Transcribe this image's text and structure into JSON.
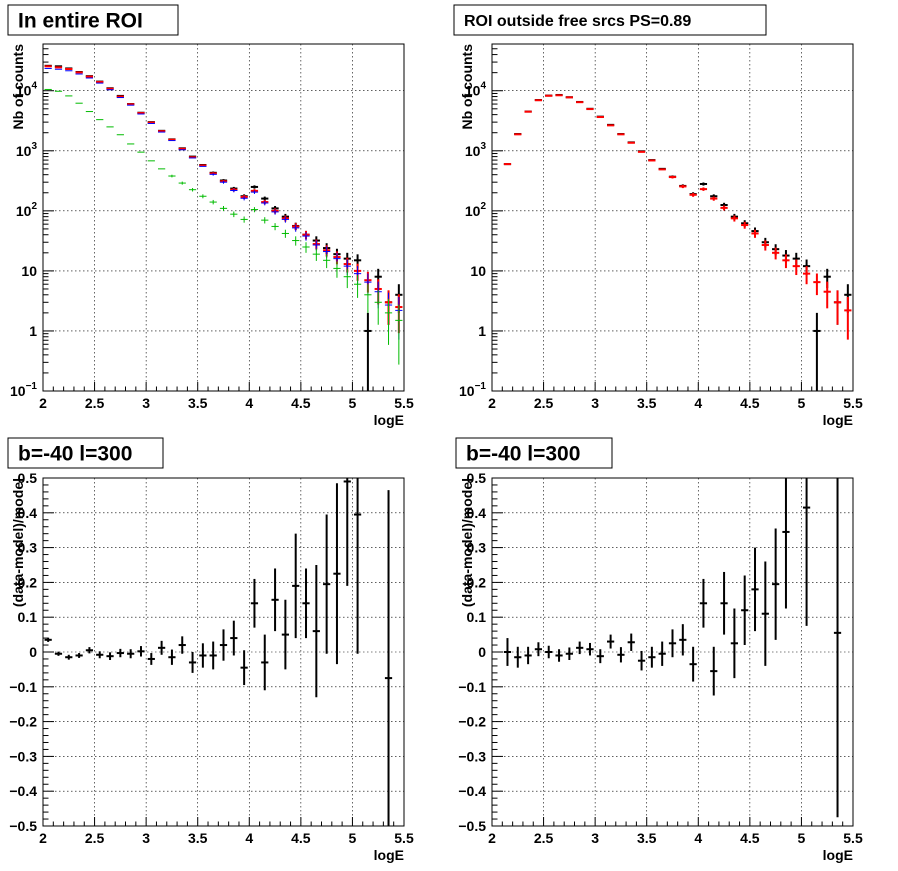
{
  "chart_data": [
    {
      "type": "scatter",
      "title": "In entire ROI",
      "xlabel": "logE",
      "ylabel": "Nb of counts",
      "xlim": [
        2,
        5.5
      ],
      "ylim": [
        0.1,
        60000
      ],
      "yscale": "log",
      "grid": true,
      "xticks": [
        "2",
        "2.5",
        "3",
        "3.5",
        "4",
        "4.5",
        "5",
        "5.5"
      ],
      "yticks": [
        {
          "v": 0.1,
          "label": "10",
          "sup": "−1"
        },
        {
          "v": 1,
          "label": "1"
        },
        {
          "v": 10,
          "label": "10"
        },
        {
          "v": 100,
          "label": "10",
          "sup": "2"
        },
        {
          "v": 1000,
          "label": "10",
          "sup": "3"
        },
        {
          "v": 10000,
          "label": "10",
          "sup": "4"
        }
      ],
      "x": [
        2.05,
        2.15,
        2.25,
        2.35,
        2.45,
        2.55,
        2.65,
        2.75,
        2.85,
        2.95,
        3.05,
        3.15,
        3.25,
        3.35,
        3.45,
        3.55,
        3.65,
        3.75,
        3.85,
        3.95,
        4.05,
        4.15,
        4.25,
        4.35,
        4.45,
        4.55,
        4.65,
        4.75,
        4.85,
        4.95,
        5.05,
        5.15,
        5.25,
        5.35,
        5.45
      ],
      "series": [
        {
          "color": "#000000",
          "values": [
            26000,
            25500,
            23500,
            20500,
            17500,
            14200,
            11000,
            8200,
            6000,
            4300,
            3000,
            2150,
            1550,
            1100,
            800,
            580,
            430,
            320,
            235,
            175,
            250,
            160,
            110,
            80,
            56,
            40,
            32,
            24,
            19,
            16,
            15,
            1,
            8,
            3,
            4
          ]
        },
        {
          "color": "#ff0000",
          "values": [
            25500,
            24500,
            23000,
            20200,
            17200,
            14000,
            10800,
            8000,
            5950,
            4250,
            2950,
            2120,
            1530,
            1080,
            780,
            570,
            420,
            310,
            225,
            170,
            215,
            140,
            100,
            75,
            55,
            40,
            28,
            22,
            17,
            13,
            10,
            7,
            5,
            3,
            2.5
          ]
        },
        {
          "color": "#0000ff",
          "values": [
            23500,
            22800,
            21500,
            19000,
            16300,
            13400,
            10400,
            7700,
            5750,
            4100,
            2850,
            2050,
            1480,
            1040,
            760,
            550,
            405,
            300,
            218,
            162,
            205,
            135,
            96,
            72,
            52,
            38,
            27,
            21,
            16,
            12,
            9,
            6.5,
            4.5,
            2.7,
            2.2
          ]
        },
        {
          "color": "#00bb00",
          "values": [
            10500,
            9800,
            8200,
            6200,
            4500,
            3300,
            2500,
            1850,
            1300,
            950,
            680,
            500,
            380,
            290,
            225,
            175,
            140,
            110,
            88,
            72,
            105,
            70,
            55,
            42,
            32,
            25,
            19,
            15,
            11,
            8,
            6,
            4,
            3,
            2,
            1.5
          ]
        }
      ]
    },
    {
      "type": "scatter",
      "title": "ROI outside free srcs PS=0.89",
      "xlabel": "logE",
      "ylabel": "Nb of counts",
      "xlim": [
        2,
        5.5
      ],
      "ylim": [
        0.1,
        60000
      ],
      "yscale": "log",
      "grid": true,
      "xticks": [
        "2",
        "2.5",
        "3",
        "3.5",
        "4",
        "4.5",
        "5",
        "5.5"
      ],
      "yticks": [
        {
          "v": 0.1,
          "label": "10",
          "sup": "−1"
        },
        {
          "v": 1,
          "label": "1"
        },
        {
          "v": 10,
          "label": "10"
        },
        {
          "v": 100,
          "label": "10",
          "sup": "2"
        },
        {
          "v": 1000,
          "label": "10",
          "sup": "3"
        },
        {
          "v": 10000,
          "label": "10",
          "sup": "4"
        }
      ],
      "x": [
        2.15,
        2.25,
        2.35,
        2.45,
        2.55,
        2.65,
        2.75,
        2.85,
        2.95,
        3.05,
        3.15,
        3.25,
        3.35,
        3.45,
        3.55,
        3.65,
        3.75,
        3.85,
        3.95,
        4.05,
        4.15,
        4.25,
        4.35,
        4.45,
        4.55,
        4.65,
        4.75,
        4.85,
        4.95,
        5.05,
        5.15,
        5.25,
        5.35,
        5.45
      ],
      "series": [
        {
          "color": "#000000",
          "values": [
            600,
            1900,
            4500,
            7000,
            8300,
            8500,
            7800,
            6500,
            5000,
            3700,
            2700,
            1900,
            1380,
            980,
            700,
            500,
            370,
            260,
            190,
            280,
            175,
            125,
            80,
            62,
            46,
            30,
            23,
            18,
            16,
            12,
            1,
            8,
            3,
            4
          ]
        },
        {
          "color": "#ff0000",
          "values": [
            600,
            1880,
            4480,
            6950,
            8250,
            8400,
            7750,
            6450,
            4950,
            3650,
            2650,
            1880,
            1360,
            960,
            690,
            490,
            365,
            255,
            185,
            230,
            160,
            112,
            75,
            58,
            42,
            27,
            20,
            15,
            12,
            9,
            6.5,
            4.5,
            3,
            2.2
          ]
        }
      ]
    },
    {
      "type": "scatter",
      "title": "b=-40 l=300",
      "xlabel": "logE",
      "ylabel": "(data-model)/model",
      "xlim": [
        2,
        5.5
      ],
      "ylim": [
        -0.5,
        0.5
      ],
      "grid": true,
      "xticks": [
        "2",
        "2.5",
        "3",
        "3.5",
        "4",
        "4.5",
        "5",
        "5.5"
      ],
      "yticks": [
        "−0.5",
        "−0.4",
        "−0.3",
        "−0.2",
        "−0.1",
        "0",
        "0.1",
        "0.2",
        "0.3",
        "0.4",
        "0.5"
      ],
      "x": [
        2.05,
        2.15,
        2.25,
        2.35,
        2.45,
        2.55,
        2.65,
        2.75,
        2.85,
        2.95,
        3.05,
        3.15,
        3.25,
        3.35,
        3.45,
        3.55,
        3.65,
        3.75,
        3.85,
        3.95,
        4.05,
        4.15,
        4.25,
        4.35,
        4.45,
        4.55,
        4.65,
        4.75,
        4.85,
        4.95,
        5.05,
        5.35
      ],
      "values": [
        0.035,
        -0.005,
        -0.015,
        -0.01,
        0.005,
        -0.008,
        -0.012,
        -0.003,
        -0.005,
        0.002,
        -0.02,
        0.012,
        -0.015,
        0.02,
        -0.03,
        -0.01,
        -0.01,
        0.02,
        0.04,
        -0.045,
        0.14,
        -0.03,
        0.15,
        0.05,
        0.19,
        0.14,
        0.06,
        0.195,
        0.225,
        0.49,
        0.395,
        -0.075
      ],
      "errors": [
        0.006,
        0.006,
        0.007,
        0.007,
        0.009,
        0.01,
        0.011,
        0.012,
        0.013,
        0.015,
        0.017,
        0.02,
        0.022,
        0.025,
        0.03,
        0.035,
        0.04,
        0.045,
        0.05,
        0.05,
        0.07,
        0.08,
        0.09,
        0.1,
        0.15,
        0.1,
        0.19,
        0.2,
        0.26,
        0.3,
        0.4,
        0.54
      ]
    },
    {
      "type": "scatter",
      "title": "b=-40 l=300",
      "xlabel": "logE",
      "ylabel": "(data-model)/model",
      "xlim": [
        2,
        5.5
      ],
      "ylim": [
        -0.5,
        0.5
      ],
      "grid": true,
      "xticks": [
        "2",
        "2.5",
        "3",
        "3.5",
        "4",
        "4.5",
        "5",
        "5.5"
      ],
      "yticks": [
        "−0.5",
        "−0.4",
        "−0.3",
        "−0.2",
        "−0.1",
        "0",
        "0.1",
        "0.2",
        "0.3",
        "0.4",
        "0.5"
      ],
      "x": [
        2.15,
        2.25,
        2.35,
        2.45,
        2.55,
        2.65,
        2.75,
        2.85,
        2.95,
        3.05,
        3.15,
        3.25,
        3.35,
        3.45,
        3.55,
        3.65,
        3.75,
        3.85,
        3.95,
        4.05,
        4.15,
        4.25,
        4.35,
        4.45,
        4.55,
        4.65,
        4.75,
        4.85,
        5.05,
        5.35
      ],
      "values": [
        0.0,
        -0.015,
        -0.01,
        0.008,
        0.0,
        -0.01,
        -0.005,
        0.012,
        0.008,
        -0.012,
        0.03,
        -0.008,
        0.028,
        -0.025,
        -0.015,
        -0.005,
        0.025,
        0.035,
        -0.035,
        0.14,
        -0.055,
        0.14,
        0.025,
        0.12,
        0.18,
        0.11,
        0.195,
        0.345,
        0.415,
        0.055
      ],
      "errors": [
        0.04,
        0.03,
        0.025,
        0.02,
        0.018,
        0.018,
        0.018,
        0.018,
        0.018,
        0.02,
        0.02,
        0.022,
        0.025,
        0.028,
        0.03,
        0.035,
        0.04,
        0.045,
        0.05,
        0.07,
        0.07,
        0.09,
        0.1,
        0.1,
        0.12,
        0.15,
        0.16,
        0.22,
        0.34,
        0.53
      ]
    }
  ]
}
